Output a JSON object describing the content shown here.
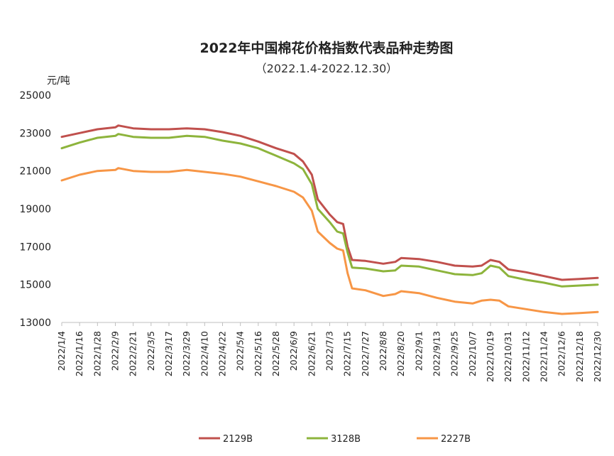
{
  "chart_data": {
    "type": "line",
    "title": "2022年中国棉花价格指数代表品种走势图",
    "subtitle": "（2022.1.4-2022.12.30）",
    "ylabel": "元/吨",
    "xlabel": "",
    "ylim": [
      13000,
      25000
    ],
    "yticks": [
      "25000",
      "23000",
      "21000",
      "19000",
      "17000",
      "15000",
      "13000"
    ],
    "xticks": [
      "2022/1/4",
      "2022/1/16",
      "2022/1/28",
      "2022/2/9",
      "2022/2/21",
      "2022/3/5",
      "2022/3/17",
      "2022/3/29",
      "2022/4/10",
      "2022/4/22",
      "2022/5/4",
      "2022/5/16",
      "2022/5/28",
      "2022/6/9",
      "2022/6/21",
      "2022/7/3",
      "2022/7/15",
      "2022/7/27",
      "2022/8/8",
      "2022/8/20",
      "2022/9/1",
      "2022/9/13",
      "2022/9/25",
      "2022/10/7",
      "2022/10/19",
      "2022/10/31",
      "2022/11/12",
      "2022/11/24",
      "2022/12/6",
      "2022/12/18",
      "2022/12/30"
    ],
    "legend_position": "bottom",
    "grid": false,
    "series": [
      {
        "name": "2129B",
        "color": "#c0504d",
        "x": [
          "2022/1/4",
          "2022/1/16",
          "2022/1/28",
          "2022/2/9",
          "2022/2/11",
          "2022/2/21",
          "2022/3/5",
          "2022/3/17",
          "2022/3/29",
          "2022/4/10",
          "2022/4/22",
          "2022/5/4",
          "2022/5/16",
          "2022/5/28",
          "2022/6/9",
          "2022/6/15",
          "2022/6/21",
          "2022/6/25",
          "2022/7/3",
          "2022/7/8",
          "2022/7/12",
          "2022/7/15",
          "2022/7/18",
          "2022/7/27",
          "2022/8/8",
          "2022/8/16",
          "2022/8/20",
          "2022/9/1",
          "2022/9/13",
          "2022/9/25",
          "2022/10/7",
          "2022/10/13",
          "2022/10/19",
          "2022/10/25",
          "2022/10/31",
          "2022/11/12",
          "2022/11/24",
          "2022/12/6",
          "2022/12/18",
          "2022/12/30"
        ],
        "values": [
          22800,
          23000,
          23200,
          23300,
          23400,
          23250,
          23200,
          23200,
          23250,
          23200,
          23050,
          22850,
          22550,
          22200,
          21900,
          21500,
          20800,
          19500,
          18700,
          18300,
          18200,
          17000,
          16300,
          16250,
          16100,
          16200,
          16400,
          16350,
          16200,
          16000,
          15950,
          16000,
          16300,
          16200,
          15800,
          15650,
          15450,
          15250,
          15300,
          15350
        ]
      },
      {
        "name": "3128B",
        "color": "#8db43c",
        "x": [
          "2022/1/4",
          "2022/1/16",
          "2022/1/28",
          "2022/2/9",
          "2022/2/11",
          "2022/2/21",
          "2022/3/5",
          "2022/3/17",
          "2022/3/29",
          "2022/4/10",
          "2022/4/22",
          "2022/5/4",
          "2022/5/16",
          "2022/5/28",
          "2022/6/9",
          "2022/6/15",
          "2022/6/21",
          "2022/6/25",
          "2022/7/3",
          "2022/7/8",
          "2022/7/12",
          "2022/7/15",
          "2022/7/18",
          "2022/7/27",
          "2022/8/8",
          "2022/8/16",
          "2022/8/20",
          "2022/9/1",
          "2022/9/13",
          "2022/9/25",
          "2022/10/7",
          "2022/10/13",
          "2022/10/19",
          "2022/10/25",
          "2022/10/31",
          "2022/11/12",
          "2022/11/24",
          "2022/12/6",
          "2022/12/18",
          "2022/12/30"
        ],
        "values": [
          22200,
          22500,
          22750,
          22850,
          22950,
          22800,
          22750,
          22750,
          22850,
          22800,
          22600,
          22450,
          22200,
          21800,
          21400,
          21100,
          20300,
          19000,
          18300,
          17800,
          17700,
          16700,
          15900,
          15850,
          15700,
          15750,
          16000,
          15950,
          15750,
          15550,
          15500,
          15600,
          16000,
          15900,
          15450,
          15250,
          15100,
          14900,
          14950,
          15000
        ]
      },
      {
        "name": "2227B",
        "color": "#f79646",
        "x": [
          "2022/1/4",
          "2022/1/16",
          "2022/1/28",
          "2022/2/9",
          "2022/2/11",
          "2022/2/21",
          "2022/3/5",
          "2022/3/17",
          "2022/3/29",
          "2022/4/10",
          "2022/4/22",
          "2022/5/4",
          "2022/5/16",
          "2022/5/28",
          "2022/6/9",
          "2022/6/15",
          "2022/6/21",
          "2022/6/25",
          "2022/7/3",
          "2022/7/8",
          "2022/7/12",
          "2022/7/15",
          "2022/7/18",
          "2022/7/27",
          "2022/8/8",
          "2022/8/16",
          "2022/8/20",
          "2022/9/1",
          "2022/9/13",
          "2022/9/25",
          "2022/10/7",
          "2022/10/13",
          "2022/10/19",
          "2022/10/25",
          "2022/10/31",
          "2022/11/12",
          "2022/11/24",
          "2022/12/6",
          "2022/12/18",
          "2022/12/30"
        ],
        "values": [
          20500,
          20800,
          21000,
          21050,
          21150,
          21000,
          20950,
          20950,
          21050,
          20950,
          20850,
          20700,
          20450,
          20200,
          19900,
          19600,
          18900,
          17800,
          17200,
          16900,
          16800,
          15600,
          14800,
          14700,
          14400,
          14500,
          14650,
          14550,
          14300,
          14100,
          14000,
          14150,
          14200,
          14150,
          13850,
          13700,
          13550,
          13450,
          13500,
          13550
        ]
      }
    ]
  }
}
